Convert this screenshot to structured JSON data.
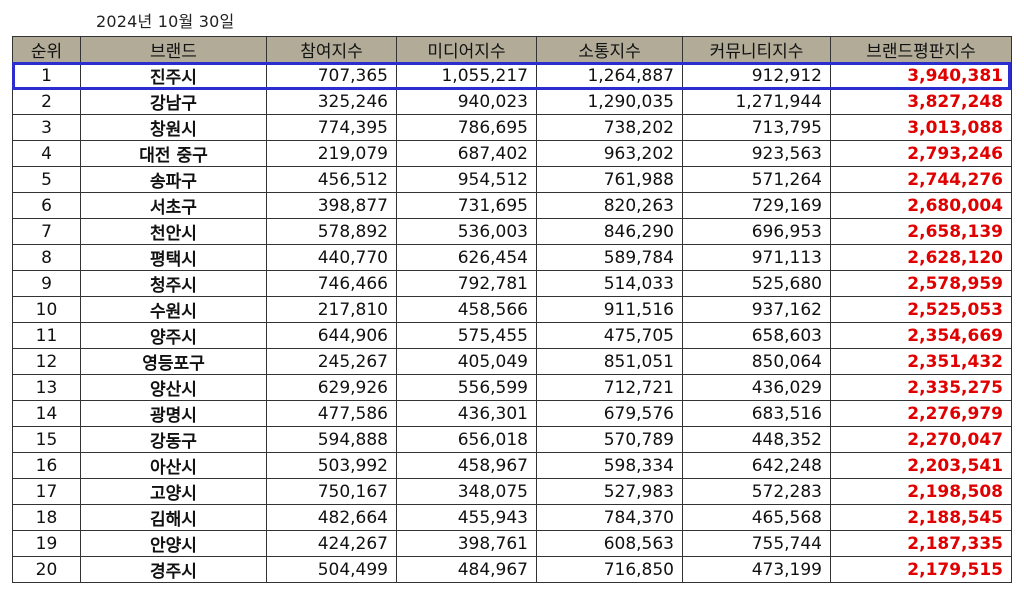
{
  "date_caption": "2024년 10월 30일",
  "colors": {
    "header_bg": "#b1ab98",
    "total_text": "#e00000",
    "highlight_border": "#2a2ecf"
  },
  "table": {
    "headers": [
      "순위",
      "브랜드",
      "참여지수",
      "미디어지수",
      "소통지수",
      "커뮤니티지수",
      "브랜드평판지수"
    ],
    "rows": [
      [
        "1",
        "진주시",
        "707,365",
        "1,055,217",
        "1,264,887",
        "912,912",
        "3,940,381"
      ],
      [
        "2",
        "강남구",
        "325,246",
        "940,023",
        "1,290,035",
        "1,271,944",
        "3,827,248"
      ],
      [
        "3",
        "창원시",
        "774,395",
        "786,695",
        "738,202",
        "713,795",
        "3,013,088"
      ],
      [
        "4",
        "대전 중구",
        "219,079",
        "687,402",
        "963,202",
        "923,563",
        "2,793,246"
      ],
      [
        "5",
        "송파구",
        "456,512",
        "954,512",
        "761,988",
        "571,264",
        "2,744,276"
      ],
      [
        "6",
        "서초구",
        "398,877",
        "731,695",
        "820,263",
        "729,169",
        "2,680,004"
      ],
      [
        "7",
        "천안시",
        "578,892",
        "536,003",
        "846,290",
        "696,953",
        "2,658,139"
      ],
      [
        "8",
        "평택시",
        "440,770",
        "626,454",
        "589,784",
        "971,113",
        "2,628,120"
      ],
      [
        "9",
        "청주시",
        "746,466",
        "792,781",
        "514,033",
        "525,680",
        "2,578,959"
      ],
      [
        "10",
        "수원시",
        "217,810",
        "458,566",
        "911,516",
        "937,162",
        "2,525,053"
      ],
      [
        "11",
        "양주시",
        "644,906",
        "575,455",
        "475,705",
        "658,603",
        "2,354,669"
      ],
      [
        "12",
        "영등포구",
        "245,267",
        "405,049",
        "851,051",
        "850,064",
        "2,351,432"
      ],
      [
        "13",
        "양산시",
        "629,926",
        "556,599",
        "712,721",
        "436,029",
        "2,335,275"
      ],
      [
        "14",
        "광명시",
        "477,586",
        "436,301",
        "679,576",
        "683,516",
        "2,276,979"
      ],
      [
        "15",
        "강동구",
        "594,888",
        "656,018",
        "570,789",
        "448,352",
        "2,270,047"
      ],
      [
        "16",
        "아산시",
        "503,992",
        "458,967",
        "598,334",
        "642,248",
        "2,203,541"
      ],
      [
        "17",
        "고양시",
        "750,167",
        "348,075",
        "527,983",
        "572,283",
        "2,198,508"
      ],
      [
        "18",
        "김해시",
        "482,664",
        "455,943",
        "784,370",
        "465,568",
        "2,188,545"
      ],
      [
        "19",
        "안양시",
        "424,267",
        "398,761",
        "608,563",
        "755,744",
        "2,187,335"
      ],
      [
        "20",
        "경주시",
        "504,499",
        "484,967",
        "716,850",
        "473,199",
        "2,179,515"
      ]
    ],
    "highlighted_row": 0
  }
}
